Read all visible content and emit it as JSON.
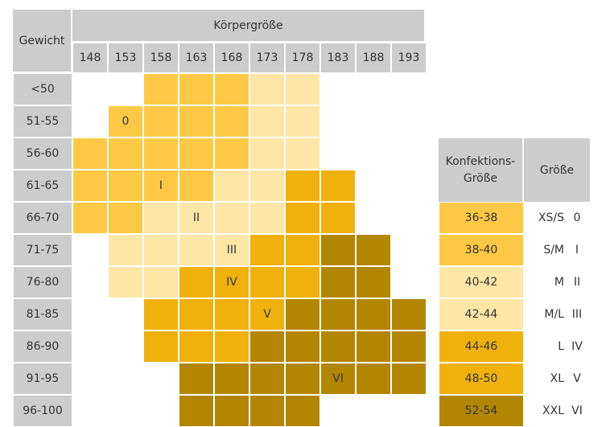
{
  "table": {
    "weight_header": "Gewicht",
    "height_header": "Körpergröße",
    "heights": [
      "148",
      "153",
      "158",
      "163",
      "168",
      "173",
      "178",
      "183",
      "188",
      "193"
    ],
    "weights": [
      "<50",
      "51-55",
      "56-60",
      "61-65",
      "66-70",
      "71-75",
      "76-80",
      "81-85",
      "86-90",
      "91-95",
      "96-100"
    ],
    "size_markers": [
      {
        "label": "0",
        "row": 1,
        "col": 1
      },
      {
        "label": "I",
        "row": 3,
        "col": 2
      },
      {
        "label": "II",
        "row": 4,
        "col": 3
      },
      {
        "label": "III",
        "row": 5,
        "col": 4
      },
      {
        "label": "IV",
        "row": 6,
        "col": 4
      },
      {
        "label": "V",
        "row": 7,
        "col": 5
      },
      {
        "label": "VI",
        "row": 9,
        "col": 7
      }
    ],
    "grid_levels": [
      [
        0,
        0,
        2,
        2,
        2,
        1,
        1,
        0,
        0,
        0
      ],
      [
        0,
        2,
        2,
        2,
        2,
        1,
        1,
        0,
        0,
        0
      ],
      [
        2,
        2,
        2,
        2,
        2,
        1,
        1,
        0,
        0,
        0
      ],
      [
        2,
        2,
        2,
        2,
        1,
        1,
        3,
        3,
        0,
        0
      ],
      [
        2,
        2,
        1,
        1,
        1,
        1,
        3,
        3,
        0,
        0
      ],
      [
        0,
        1,
        1,
        1,
        1,
        3,
        3,
        4,
        4,
        0
      ],
      [
        0,
        1,
        1,
        3,
        3,
        3,
        3,
        4,
        4,
        0
      ],
      [
        0,
        0,
        3,
        3,
        3,
        3,
        4,
        4,
        4,
        4
      ],
      [
        0,
        0,
        3,
        3,
        3,
        4,
        4,
        4,
        4,
        4
      ],
      [
        0,
        0,
        0,
        4,
        4,
        4,
        4,
        4,
        4,
        4
      ],
      [
        0,
        0,
        0,
        4,
        4,
        4,
        4,
        0,
        0,
        0
      ]
    ]
  },
  "legend": {
    "konfektion_header_line1": "Konfektions-",
    "konfektion_header_line2": "Größe",
    "groesse_header": "Größe",
    "rows": [
      {
        "konf": "36-38",
        "letter": "XS/S",
        "roman": "0",
        "level": 2
      },
      {
        "konf": "38-40",
        "letter": "S/M",
        "roman": "I",
        "level": 2
      },
      {
        "konf": "40-42",
        "letter": "M",
        "roman": "II",
        "level": 1
      },
      {
        "konf": "42-44",
        "letter": "M/L",
        "roman": "III",
        "level": 1
      },
      {
        "konf": "44-46",
        "letter": "L",
        "roman": "IV",
        "level": 3
      },
      {
        "konf": "48-50",
        "letter": "XL",
        "roman": "V",
        "level": 3
      },
      {
        "konf": "52-54",
        "letter": "XXL",
        "roman": "VI",
        "level": 4
      }
    ]
  },
  "colors": {
    "header_gray": "#cccccc",
    "level_1": "#fde6a6",
    "level_2": "#fdc945",
    "level_3": "#f0b10d",
    "level_4": "#b38600",
    "border": "#ffffff",
    "text": "#333333"
  }
}
